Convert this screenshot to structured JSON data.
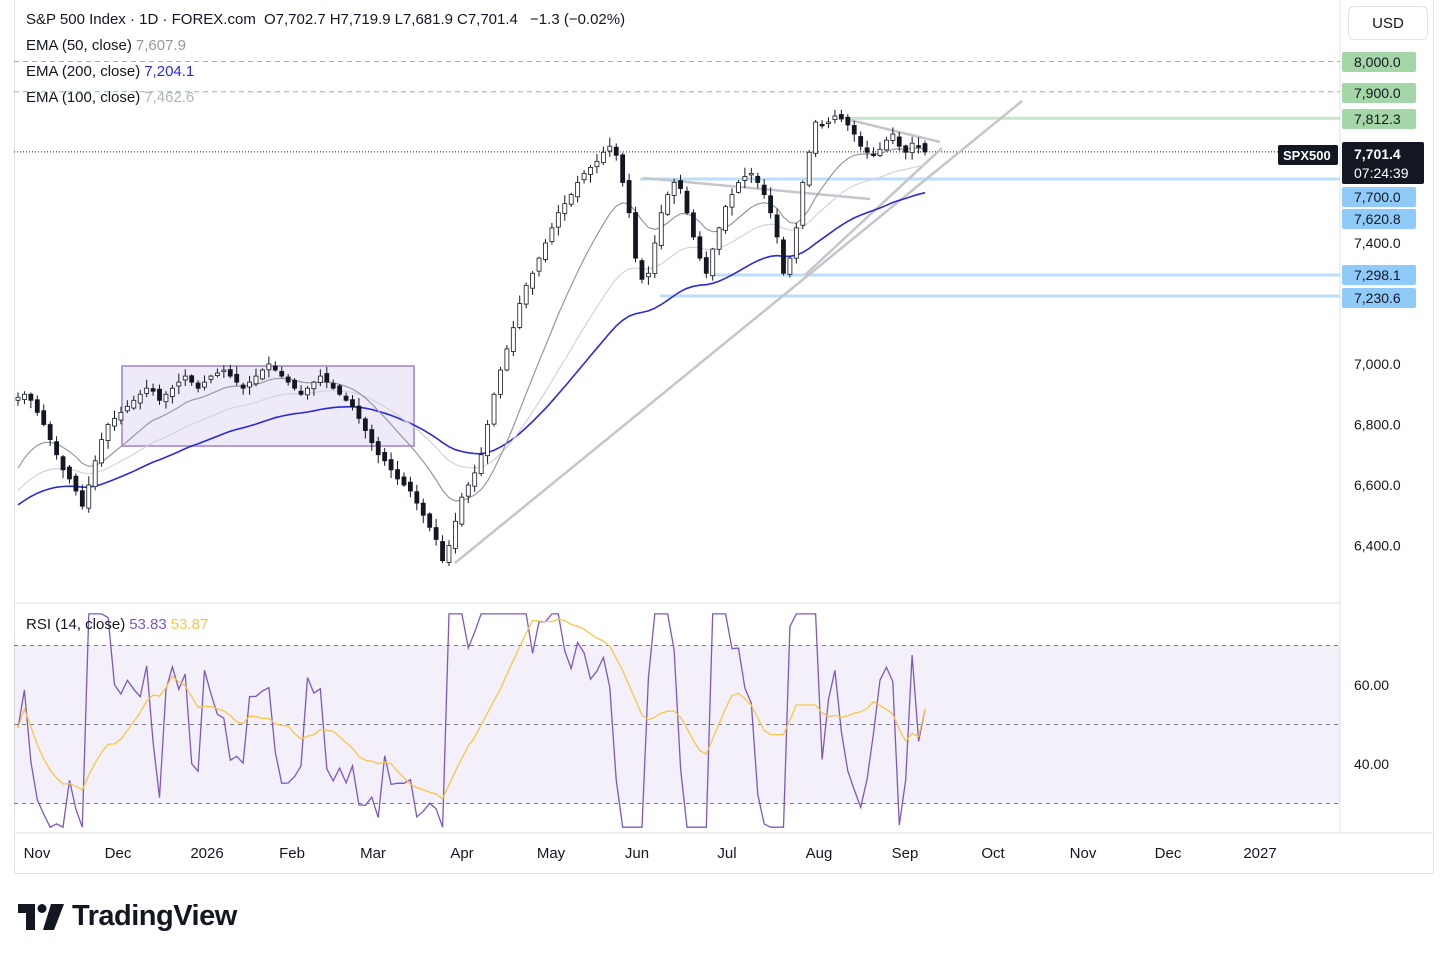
{
  "header": {
    "symbol_title": "S&P 500 Index · 1D · FOREX.com",
    "ohlc": [
      {
        "k": "O",
        "v": "7,702.7"
      },
      {
        "k": "H",
        "v": "7,719.9"
      },
      {
        "k": "L",
        "v": "7,681.9"
      },
      {
        "k": "C",
        "v": "7,701.4"
      }
    ],
    "change": "−1.3 (−0.02%)",
    "currency_button": "USD"
  },
  "legend": [
    {
      "label": "EMA (50, close)",
      "value": "7,607.9",
      "color": "#9598a1"
    },
    {
      "label": "EMA (200, close)",
      "value": "7,204.1",
      "color": "#2a2ad8"
    },
    {
      "label": "EMA (100, close)",
      "value": "7,462.6",
      "color": "#d1d4dc"
    }
  ],
  "rsi_legend": {
    "label": "RSI (14, close)",
    "value": "53.83",
    "ma_value": "53.87",
    "color": "#7e57c2",
    "ma_color": "#f7c744"
  },
  "colors": {
    "up": "#ffffff",
    "down": "#131722",
    "ema50": "#9598a1",
    "ema100": "#d1d4dc",
    "ema200": "#2a2ad8",
    "rsi": "#7e57c2",
    "rsi_ma": "#f7c744",
    "green_label": "#a5d6a7",
    "blue_label": "#90caf9"
  },
  "chart_data": {
    "type": "candlestick",
    "title": "S&P 500 Index · 1D · FOREX.com",
    "price_axis_ticks": [
      "7,400.0",
      "7,000.0",
      "6,800.0",
      "6,600.0",
      "6,400.0"
    ],
    "time_axis_labels": [
      "Nov",
      "Dec",
      "2026",
      "Feb",
      "Mar",
      "Apr",
      "May",
      "Jun",
      "Jul",
      "Aug",
      "Sep",
      "Oct",
      "Nov",
      "Dec",
      "2027"
    ],
    "current_price": {
      "symbol": "SPX500",
      "price": "7,701.4",
      "countdown": "07:24:39",
      "value": 7701.4
    },
    "resistance_levels": [
      {
        "value": 8000.0,
        "label": "8,000.0",
        "kind": "green"
      },
      {
        "value": 7900.0,
        "label": "7,900.0",
        "kind": "green"
      },
      {
        "value": 7812.3,
        "label": "7,812.3",
        "kind": "green"
      }
    ],
    "support_levels": [
      {
        "value": 7700.0,
        "label": "7,700.0",
        "kind": "blue"
      },
      {
        "value": 7620.8,
        "label": "7,620.8",
        "kind": "blue"
      },
      {
        "value": 7298.1,
        "label": "7,298.1",
        "kind": "blue"
      },
      {
        "value": 7230.6,
        "label": "7,230.6",
        "kind": "blue"
      }
    ],
    "ema_latest": {
      "ema50": 7607.9,
      "ema100": 7462.6,
      "ema200": 7204.1
    },
    "close_path": [
      6890,
      6900,
      6880,
      6840,
      6800,
      6750,
      6700,
      6650,
      6620,
      6580,
      6530,
      6600,
      6680,
      6750,
      6800,
      6820,
      6840,
      6860,
      6880,
      6900,
      6920,
      6910,
      6880,
      6900,
      6920,
      6940,
      6960,
      6940,
      6920,
      6940,
      6960,
      6970,
      6980,
      6960,
      6940,
      6920,
      6940,
      6960,
      6980,
      7000,
      6980,
      6960,
      6940,
      6920,
      6900,
      6920,
      6940,
      6960,
      6940,
      6920,
      6900,
      6880,
      6860,
      6820,
      6780,
      6740,
      6700,
      6680,
      6650,
      6620,
      6600,
      6580,
      6540,
      6500,
      6460,
      6420,
      6350,
      6400,
      6480,
      6560,
      6600,
      6640,
      6700,
      6800,
      6900,
      6980,
      7050,
      7120,
      7200,
      7260,
      7300,
      7350,
      7400,
      7450,
      7500,
      7530,
      7560,
      7600,
      7630,
      7650,
      7670,
      7700,
      7720,
      7690,
      7600,
      7500,
      7350,
      7280,
      7300,
      7400,
      7500,
      7560,
      7600,
      7580,
      7500,
      7420,
      7350,
      7300,
      7380,
      7450,
      7520,
      7560,
      7600,
      7620,
      7630,
      7600,
      7560,
      7500,
      7420,
      7300,
      7350,
      7450,
      7600,
      7700,
      7800,
      7790,
      7800,
      7820,
      7810,
      7790,
      7760,
      7720,
      7700,
      7690,
      7710,
      7740,
      7760,
      7720,
      7700,
      7730,
      7720,
      7701
    ],
    "rsi": {
      "ylim": [
        20,
        82
      ],
      "bands": {
        "upper": 70,
        "middle": 50,
        "lower": 30
      },
      "ticks": [
        "60.00",
        "40.00"
      ],
      "latest": 53.83,
      "ma_latest": 53.87
    }
  }
}
